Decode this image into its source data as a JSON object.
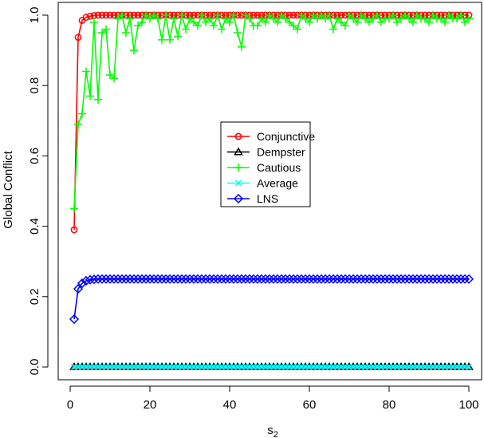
{
  "chart_data": {
    "type": "line",
    "xlabel": "s",
    "xlabel_subscript": "2",
    "ylabel": "Global Conflict",
    "xlim": [
      1,
      100
    ],
    "ylim": [
      0,
      1
    ],
    "x_ticks": [
      0,
      20,
      40,
      60,
      80,
      100
    ],
    "y_ticks": [
      0.0,
      0.2,
      0.4,
      0.6,
      0.8,
      1.0
    ],
    "x_tick_labels": [
      "0",
      "20",
      "40",
      "60",
      "80",
      "100"
    ],
    "y_tick_labels": [
      "0.0",
      "0.2",
      "0.4",
      "0.6",
      "0.8",
      "1.0"
    ],
    "grid": false,
    "legend_position": "center",
    "series": [
      {
        "name": "Conjunctive",
        "color": "#ff0000",
        "marker": "circle",
        "values": [
          0.39,
          0.937,
          0.985,
          0.994,
          0.997,
          0.999,
          1.0,
          1.0,
          1.0,
          1.0,
          1.0,
          1.0,
          1.0,
          1.0,
          1.0,
          1.0,
          1.0,
          1.0,
          1.0,
          1.0,
          1.0,
          1.0,
          1.0,
          1.0,
          1.0,
          1.0,
          1.0,
          1.0,
          1.0,
          1.0,
          1.0,
          1.0,
          1.0,
          1.0,
          1.0,
          1.0,
          1.0,
          1.0,
          1.0,
          1.0,
          1.0,
          1.0,
          1.0,
          1.0,
          1.0,
          1.0,
          1.0,
          1.0,
          1.0,
          1.0,
          1.0,
          1.0,
          1.0,
          1.0,
          1.0,
          1.0,
          1.0,
          1.0,
          1.0,
          1.0,
          1.0,
          1.0,
          1.0,
          1.0,
          1.0,
          1.0,
          1.0,
          1.0,
          1.0,
          1.0,
          1.0,
          1.0,
          1.0,
          1.0,
          1.0,
          1.0,
          1.0,
          1.0,
          1.0,
          1.0,
          1.0,
          1.0,
          1.0,
          1.0,
          1.0,
          1.0,
          1.0,
          1.0,
          1.0,
          1.0,
          1.0,
          1.0,
          1.0,
          1.0,
          1.0,
          1.0,
          1.0,
          1.0,
          1.0,
          1.0
        ]
      },
      {
        "name": "Dempster",
        "color": "#000000",
        "marker": "triangle",
        "values": [
          0.0,
          0.0,
          0.0,
          0.0,
          0.0,
          0.0,
          0.0,
          0.0,
          0.0,
          0.0,
          0.0,
          0.0,
          0.0,
          0.0,
          0.0,
          0.0,
          0.0,
          0.0,
          0.0,
          0.0,
          0.0,
          0.0,
          0.0,
          0.0,
          0.0,
          0.0,
          0.0,
          0.0,
          0.0,
          0.0,
          0.0,
          0.0,
          0.0,
          0.0,
          0.0,
          0.0,
          0.0,
          0.0,
          0.0,
          0.0,
          0.0,
          0.0,
          0.0,
          0.0,
          0.0,
          0.0,
          0.0,
          0.0,
          0.0,
          0.0,
          0.0,
          0.0,
          0.0,
          0.0,
          0.0,
          0.0,
          0.0,
          0.0,
          0.0,
          0.0,
          0.0,
          0.0,
          0.0,
          0.0,
          0.0,
          0.0,
          0.0,
          0.0,
          0.0,
          0.0,
          0.0,
          0.0,
          0.0,
          0.0,
          0.0,
          0.0,
          0.0,
          0.0,
          0.0,
          0.0,
          0.0,
          0.0,
          0.0,
          0.0,
          0.0,
          0.0,
          0.0,
          0.0,
          0.0,
          0.0,
          0.0,
          0.0,
          0.0,
          0.0,
          0.0,
          0.0,
          0.0,
          0.0,
          0.0,
          0.0
        ]
      },
      {
        "name": "Cautious",
        "color": "#00ff00",
        "marker": "plus",
        "values": [
          0.45,
          0.69,
          0.72,
          0.84,
          0.77,
          0.98,
          0.76,
          0.95,
          0.96,
          0.83,
          0.82,
          0.99,
          1.0,
          0.95,
          0.99,
          0.9,
          0.97,
          0.98,
          1.0,
          0.99,
          1.0,
          0.99,
          0.93,
          1.0,
          0.93,
          0.99,
          0.94,
          1.0,
          0.96,
          0.99,
          0.98,
          0.97,
          1.0,
          0.98,
          0.99,
          0.97,
          1.0,
          0.96,
          0.99,
          0.98,
          1.0,
          0.95,
          0.91,
          1.0,
          0.99,
          0.97,
          0.97,
          0.99,
          0.98,
          1.0,
          0.99,
          0.98,
          1.0,
          0.99,
          0.98,
          0.97,
          0.96,
          1.0,
          0.99,
          0.98,
          1.0,
          0.99,
          1.0,
          0.99,
          1.0,
          0.96,
          0.99,
          0.98,
          0.97,
          1.0,
          0.99,
          0.98,
          1.0,
          0.99,
          0.98,
          0.99,
          1.0,
          0.98,
          0.99,
          0.99,
          1.0,
          0.98,
          0.99,
          1.0,
          0.99,
          0.98,
          1.0,
          0.99,
          0.99,
          0.98,
          1.0,
          0.99,
          0.99,
          0.98,
          1.0,
          0.99,
          0.99,
          1.0,
          0.98,
          0.99
        ]
      },
      {
        "name": "Average",
        "color": "#00ffff",
        "marker": "x",
        "values": [
          0.0,
          0.0,
          0.0,
          0.0,
          0.0,
          0.0,
          0.0,
          0.0,
          0.0,
          0.0,
          0.0,
          0.0,
          0.0,
          0.0,
          0.0,
          0.0,
          0.0,
          0.0,
          0.0,
          0.0,
          0.0,
          0.0,
          0.0,
          0.0,
          0.0,
          0.0,
          0.0,
          0.0,
          0.0,
          0.0,
          0.0,
          0.0,
          0.0,
          0.0,
          0.0,
          0.0,
          0.0,
          0.0,
          0.0,
          0.0,
          0.0,
          0.0,
          0.0,
          0.0,
          0.0,
          0.0,
          0.0,
          0.0,
          0.0,
          0.0,
          0.0,
          0.0,
          0.0,
          0.0,
          0.0,
          0.0,
          0.0,
          0.0,
          0.0,
          0.0,
          0.0,
          0.0,
          0.0,
          0.0,
          0.0,
          0.0,
          0.0,
          0.0,
          0.0,
          0.0,
          0.0,
          0.0,
          0.0,
          0.0,
          0.0,
          0.0,
          0.0,
          0.0,
          0.0,
          0.0,
          0.0,
          0.0,
          0.0,
          0.0,
          0.0,
          0.0,
          0.0,
          0.0,
          0.0,
          0.0,
          0.0,
          0.0,
          0.0,
          0.0,
          0.0,
          0.0,
          0.0,
          0.0,
          0.0,
          0.0
        ]
      },
      {
        "name": "LNS",
        "color": "#0000ff",
        "marker": "diamond",
        "values": [
          0.136,
          0.222,
          0.238,
          0.245,
          0.248,
          0.249,
          0.25,
          0.25,
          0.25,
          0.25,
          0.25,
          0.25,
          0.25,
          0.25,
          0.25,
          0.25,
          0.25,
          0.25,
          0.25,
          0.25,
          0.25,
          0.25,
          0.25,
          0.25,
          0.25,
          0.25,
          0.25,
          0.25,
          0.25,
          0.25,
          0.25,
          0.25,
          0.25,
          0.25,
          0.25,
          0.25,
          0.25,
          0.25,
          0.25,
          0.25,
          0.25,
          0.25,
          0.25,
          0.25,
          0.25,
          0.25,
          0.25,
          0.25,
          0.25,
          0.25,
          0.25,
          0.25,
          0.25,
          0.25,
          0.25,
          0.25,
          0.25,
          0.25,
          0.25,
          0.25,
          0.25,
          0.25,
          0.25,
          0.25,
          0.25,
          0.25,
          0.25,
          0.25,
          0.25,
          0.25,
          0.25,
          0.25,
          0.25,
          0.25,
          0.25,
          0.25,
          0.25,
          0.25,
          0.25,
          0.25,
          0.25,
          0.25,
          0.25,
          0.25,
          0.25,
          0.25,
          0.25,
          0.25,
          0.25,
          0.25,
          0.25,
          0.25,
          0.25,
          0.25,
          0.25,
          0.25,
          0.25,
          0.25,
          0.25,
          0.25
        ]
      }
    ]
  }
}
